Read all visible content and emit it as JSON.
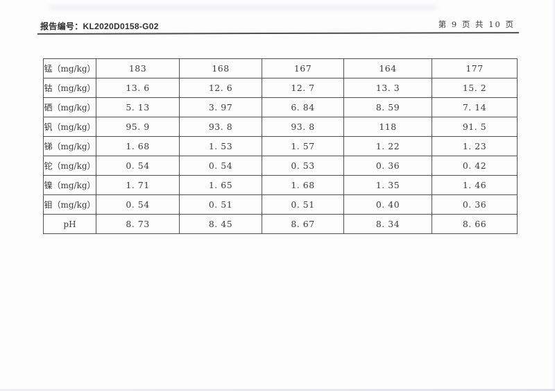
{
  "header": {
    "report_label": "报告编号：",
    "report_number": "KL2020D0158-G02",
    "page_info": "第 9 页  共 10 页"
  },
  "colors": {
    "rule_line": "#4d4d4d",
    "table_border": "#4f4f4f",
    "text": "#3b3b3b",
    "page_background": "#fdfdfe"
  },
  "table": {
    "rows": [
      {
        "label": "锰（mg/kg）",
        "values": [
          "183",
          "168",
          "167",
          "164",
          "177"
        ]
      },
      {
        "label": "钴（mg/kg）",
        "values": [
          "13. 6",
          "12. 6",
          "12. 7",
          "13. 3",
          "15. 2"
        ]
      },
      {
        "label": "硒（mg/kg）",
        "values": [
          "5. 13",
          "3. 97",
          "6. 84",
          "8. 59",
          "7. 14"
        ]
      },
      {
        "label": "钒（mg/kg）",
        "values": [
          "95. 9",
          "93. 8",
          "93. 8",
          "118",
          "91. 5"
        ]
      },
      {
        "label": "锑（mg/kg）",
        "values": [
          "1. 68",
          "1. 53",
          "1. 57",
          "1. 22",
          "1. 23"
        ]
      },
      {
        "label": "铊（mg/kg）",
        "values": [
          "0. 54",
          "0. 54",
          "0. 53",
          "0. 36",
          "0. 42"
        ]
      },
      {
        "label": "镍（mg/kg）",
        "values": [
          "1. 71",
          "1. 65",
          "1. 68",
          "1. 35",
          "1. 46"
        ]
      },
      {
        "label": "钼（mg/kg）",
        "values": [
          "0. 54",
          "0. 51",
          "0. 51",
          "0. 40",
          "0. 36"
        ]
      },
      {
        "label": "pH",
        "values": [
          "8. 73",
          "8. 45",
          "8. 67",
          "8. 34",
          "8. 66"
        ]
      }
    ]
  }
}
